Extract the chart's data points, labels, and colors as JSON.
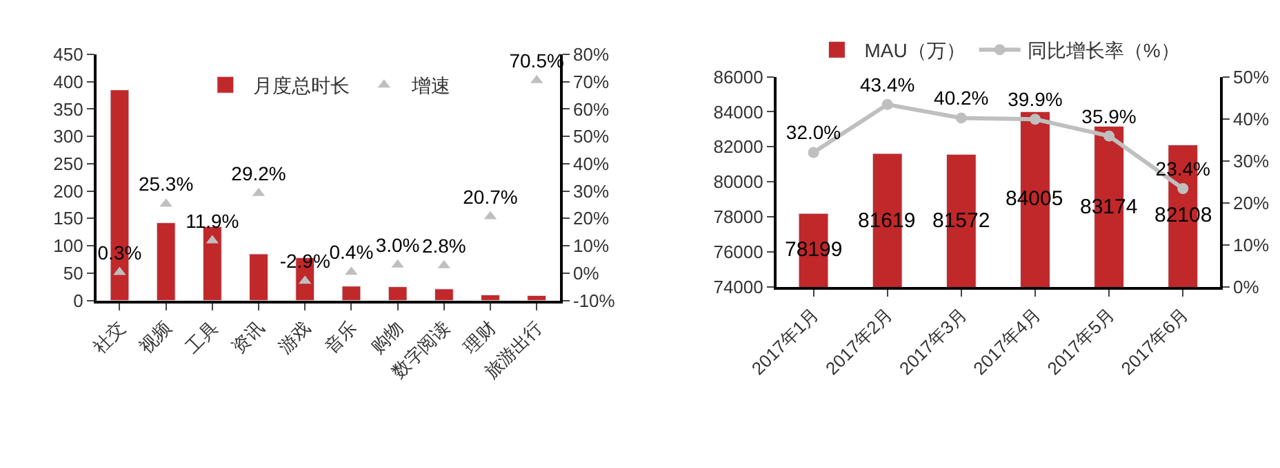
{
  "chart_data": [
    {
      "type": "bar",
      "categories": [
        "社交",
        "视频",
        "工具",
        "资讯",
        "游戏",
        "音乐",
        "购物",
        "数字阅读",
        "理财",
        "旅游出行"
      ],
      "series": [
        {
          "name": "月度总时长",
          "color": "#c0282a",
          "values": [
            385,
            142,
            135,
            85,
            78,
            26,
            25,
            21,
            10,
            9
          ]
        },
        {
          "name": "增速",
          "type": "scatter",
          "axis": "y2",
          "marker": "triangle",
          "color": "#bfbfbf",
          "values": [
            0.3,
            25.3,
            11.9,
            29.2,
            -2.9,
            0.4,
            3.0,
            2.8,
            20.7,
            70.5
          ],
          "value_labels": [
            "0.3%",
            "25.3%",
            "11.9%",
            "29.2%",
            "-2.9%",
            "0.4%",
            "3.0%",
            "2.8%",
            "20.7%",
            "70.5%"
          ]
        }
      ],
      "ylim": [
        0,
        450
      ],
      "yticks": [
        0,
        50,
        100,
        150,
        200,
        250,
        300,
        350,
        400,
        450
      ],
      "y2lim": [
        -10,
        80
      ],
      "y2ticks": [
        {
          "value": -10,
          "label": "-10%"
        },
        {
          "value": 0,
          "label": "0%"
        },
        {
          "value": 10,
          "label": "10%"
        },
        {
          "value": 20,
          "label": "20%"
        },
        {
          "value": 30,
          "label": "30%"
        },
        {
          "value": 40,
          "label": "40%"
        },
        {
          "value": 50,
          "label": "50%"
        },
        {
          "value": 60,
          "label": "60%"
        },
        {
          "value": 70,
          "label": "70%"
        },
        {
          "value": 80,
          "label": "80%"
        }
      ],
      "legend": "top"
    },
    {
      "type": "bar",
      "categories": [
        "2017年1月",
        "2017年2月",
        "2017年3月",
        "2017年4月",
        "2017年5月",
        "2017年6月"
      ],
      "series": [
        {
          "name": "MAU（万）",
          "color": "#c0282a",
          "values": [
            78199,
            81619,
            81572,
            84005,
            83174,
            82108
          ],
          "value_labels": [
            "78199",
            "81619",
            "81572",
            "84005",
            "83174",
            "82108"
          ]
        },
        {
          "name": "同比增长率（%）",
          "type": "line",
          "axis": "y2",
          "marker": "circle",
          "line_style": "solid",
          "color": "#bfbfbf",
          "values": [
            32.0,
            43.4,
            40.2,
            39.9,
            35.9,
            23.4
          ],
          "value_labels": [
            "32.0%",
            "43.4%",
            "40.2%",
            "39.9%",
            "35.9%",
            "23.4%"
          ]
        }
      ],
      "ylim": [
        74000,
        86000
      ],
      "yticks": [
        74000,
        76000,
        78000,
        80000,
        82000,
        84000,
        86000
      ],
      "y2lim": [
        0,
        50
      ],
      "y2ticks": [
        {
          "value": 0,
          "label": "0%"
        },
        {
          "value": 10,
          "label": "10%"
        },
        {
          "value": 20,
          "label": "20%"
        },
        {
          "value": 30,
          "label": "30%"
        },
        {
          "value": 40,
          "label": "40%"
        },
        {
          "value": 50,
          "label": "50%"
        }
      ],
      "legend": "top"
    }
  ]
}
